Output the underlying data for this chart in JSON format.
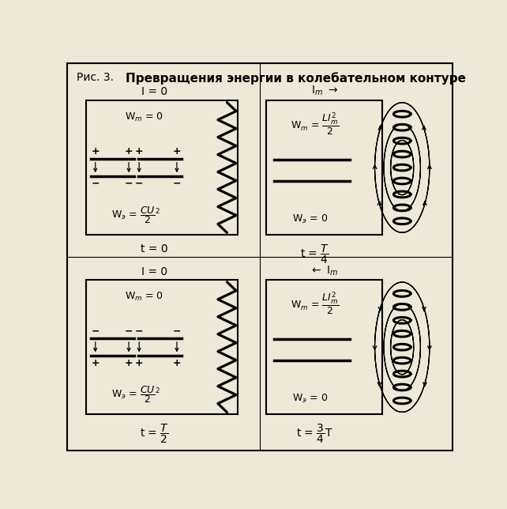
{
  "title_prefix": "Рис. 3.",
  "title_main": "Превращения энергии в колебательном контуре",
  "bg_color": "#ede8d8",
  "panels": [
    {
      "id": "top_left",
      "I_label": "I = 0",
      "Wm_label": "W_m = 0",
      "We_label": "W_э = CU²/2",
      "t_label": "t = 0",
      "cap_plus_top": true,
      "arrows_down": true
    },
    {
      "id": "top_right",
      "I_label": "I_m →",
      "Wm_label": "W_m = LI²_m/2",
      "We_label": "W_э = 0",
      "t_label": "t = T/4",
      "field_up": true
    },
    {
      "id": "bottom_left",
      "I_label": "I = 0",
      "Wm_label": "W_m = 0",
      "We_label": "W_э = CU²/2",
      "t_label": "t = T/2",
      "cap_plus_top": false,
      "arrows_down": false
    },
    {
      "id": "bottom_right",
      "I_label": "← I_m",
      "Wm_label": "W_m = LI²_m/2",
      "We_label": "W_э = 0",
      "t_label": "t = 3/4 T",
      "field_up": false
    }
  ]
}
